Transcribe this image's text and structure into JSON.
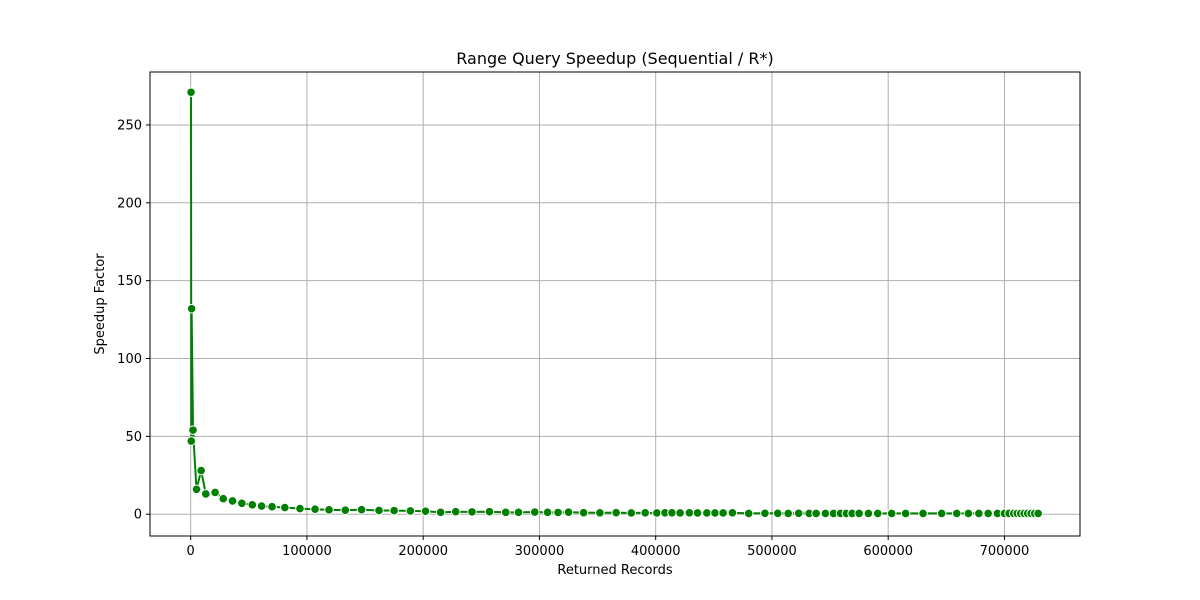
{
  "chart_data": {
    "type": "line",
    "title": "Range Query Speedup (Sequential / R*)",
    "xlabel": "Returned Records",
    "ylabel": "Speedup Factor",
    "xlim": [
      -35000,
      765000
    ],
    "ylim": [
      -14,
      284
    ],
    "x_ticks": [
      0,
      100000,
      200000,
      300000,
      400000,
      500000,
      600000,
      700000
    ],
    "y_ticks": [
      0,
      50,
      100,
      150,
      200,
      250
    ],
    "grid": true,
    "legend": "none",
    "colors": {
      "line": "#008000",
      "marker_edge": "#ffffff",
      "grid": "#b0b0b0"
    },
    "series": [
      {
        "marker": "circle",
        "x": [
          300,
          500,
          800,
          2000,
          5000,
          9000,
          13000,
          21000,
          28000,
          36000,
          44000,
          53000,
          61000,
          70000,
          81000,
          94000,
          107000,
          119000,
          133000,
          147000,
          162000,
          175000,
          189000,
          202000,
          215000,
          228000,
          242000,
          257000,
          271000,
          282000,
          296000,
          307000,
          316000,
          325000,
          338000,
          352000,
          366000,
          379000,
          391000,
          401000,
          408000,
          414000,
          421000,
          429000,
          436000,
          444000,
          451000,
          458000,
          466000,
          480000,
          494000,
          505000,
          514000,
          523000,
          532000,
          538000,
          546000,
          553000,
          559000,
          564000,
          569000,
          575000,
          583000,
          591000,
          603000,
          615000,
          630000,
          646000,
          659000,
          669000,
          678000,
          686000,
          694000,
          700000,
          704000,
          708000,
          711000,
          714000,
          717000,
          720000,
          723000,
          726000,
          729000
        ],
        "y": [
          271,
          47,
          132,
          54,
          16,
          28,
          13,
          14,
          10,
          8.5,
          7,
          6,
          5.2,
          4.8,
          4.3,
          3.6,
          3.2,
          2.8,
          2.6,
          2.9,
          2.4,
          2.3,
          2.1,
          1.9,
          1.2,
          1.6,
          1.5,
          1.6,
          1.2,
          1.2,
          1.4,
          1.2,
          1.1,
          1.3,
          1.0,
          0.9,
          1.0,
          0.8,
          0.9,
          0.8,
          0.9,
          0.9,
          0.8,
          0.9,
          0.8,
          0.8,
          0.8,
          0.8,
          0.9,
          0.5,
          0.6,
          0.6,
          0.5,
          0.6,
          0.5,
          0.5,
          0.5,
          0.5,
          0.5,
          0.5,
          0.5,
          0.5,
          0.5,
          0.5,
          0.5,
          0.5,
          0.5,
          0.5,
          0.5,
          0.5,
          0.5,
          0.5,
          0.5,
          0.5,
          0.5,
          0.5,
          0.5,
          0.5,
          0.5,
          0.5,
          0.5,
          0.5,
          0.5
        ]
      }
    ]
  }
}
